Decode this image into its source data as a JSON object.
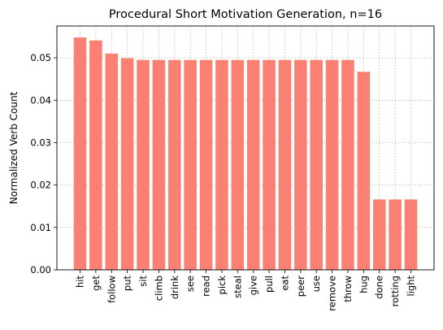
{
  "chart_data": {
    "type": "bar",
    "title": "Procedural Short Motivation Generation, n=16",
    "xlabel": "",
    "ylabel": "Normalized Verb Count",
    "categories": [
      "hit",
      "get",
      "follow",
      "put",
      "sit",
      "climb",
      "drink",
      "see",
      "read",
      "pick",
      "steal",
      "give",
      "pull",
      "eat",
      "peer",
      "use",
      "remove",
      "throw",
      "hug",
      "done",
      "rotting",
      "light"
    ],
    "values": [
      0.0548,
      0.0541,
      0.051,
      0.0499,
      0.0495,
      0.0495,
      0.0495,
      0.0495,
      0.0495,
      0.0495,
      0.0495,
      0.0495,
      0.0495,
      0.0495,
      0.0495,
      0.0495,
      0.0495,
      0.0495,
      0.0467,
      0.0166,
      0.0166,
      0.0166
    ],
    "ylim": [
      0,
      0.0575
    ],
    "yticks": [
      "0.00",
      "0.01",
      "0.02",
      "0.03",
      "0.04",
      "0.05"
    ],
    "grid": true,
    "bar_color": "#fa8072"
  }
}
